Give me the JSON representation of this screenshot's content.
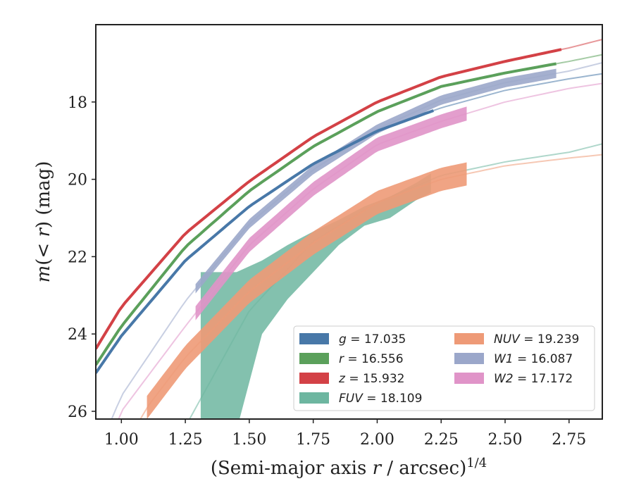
{
  "chart_data": {
    "type": "line",
    "xlabel": "(Semi-major axis r / arcsec)^{1/4}",
    "ylabel": "m(< r) (mag)",
    "xlim": [
      0.9,
      2.88
    ],
    "ylim": [
      26.2,
      16.0
    ],
    "x_ticks": [
      1.0,
      1.25,
      1.5,
      1.75,
      2.0,
      2.25,
      2.5,
      2.75
    ],
    "x_tick_labels": [
      "1.00",
      "1.25",
      "1.50",
      "1.75",
      "2.00",
      "2.25",
      "2.50",
      "2.75"
    ],
    "y_ticks": [
      18,
      20,
      22,
      24,
      26
    ],
    "y_tick_labels": [
      "18",
      "20",
      "22",
      "24",
      "26"
    ],
    "grid": false,
    "legend": {
      "placement": "lower-right",
      "columns": 2,
      "entries": [
        {
          "var": "g",
          "value": "17.035",
          "color": "#4878a8"
        },
        {
          "var": "r",
          "value": "16.556",
          "color": "#5ba05b"
        },
        {
          "var": "z",
          "value": "15.932",
          "color": "#d34146"
        },
        {
          "var": "FUV",
          "value": "18.109",
          "color": "#6db6a0"
        },
        {
          "var": "NUV",
          "value": "19.239",
          "color": "#ee9a77"
        },
        {
          "var": "W1",
          "value": "16.087",
          "color": "#9ba7ca"
        },
        {
          "var": "W2",
          "value": "17.172",
          "color": "#e094c8"
        }
      ]
    },
    "series": [
      {
        "name": "g",
        "kind": "line",
        "color": "#4878a8",
        "model": [
          [
            0.88,
            25.2
          ],
          [
            1.0,
            24.05
          ],
          [
            1.25,
            22.1
          ],
          [
            1.5,
            20.7
          ],
          [
            1.75,
            19.6
          ],
          [
            2.0,
            18.75
          ],
          [
            2.25,
            18.15
          ],
          [
            2.5,
            17.7
          ],
          [
            2.75,
            17.4
          ],
          [
            2.9,
            17.25
          ]
        ],
        "data_range": [
          0.9,
          2.22
        ]
      },
      {
        "name": "r",
        "kind": "line",
        "color": "#5ba05b",
        "model": [
          [
            0.88,
            25.0
          ],
          [
            1.0,
            23.8
          ],
          [
            1.25,
            21.75
          ],
          [
            1.5,
            20.3
          ],
          [
            1.75,
            19.15
          ],
          [
            2.0,
            18.25
          ],
          [
            2.25,
            17.6
          ],
          [
            2.5,
            17.25
          ],
          [
            2.75,
            16.95
          ],
          [
            2.9,
            16.75
          ]
        ],
        "data_range": [
          0.9,
          2.7
        ]
      },
      {
        "name": "z",
        "kind": "line",
        "color": "#d34146",
        "model": [
          [
            0.88,
            24.6
          ],
          [
            1.0,
            23.3
          ],
          [
            1.25,
            21.4
          ],
          [
            1.5,
            20.05
          ],
          [
            1.75,
            18.9
          ],
          [
            2.0,
            18.0
          ],
          [
            2.25,
            17.35
          ],
          [
            2.5,
            16.95
          ],
          [
            2.75,
            16.6
          ],
          [
            2.9,
            16.35
          ]
        ],
        "data_range": [
          0.9,
          2.72
        ]
      },
      {
        "name": "W1",
        "kind": "band",
        "color": "#9ba7ca",
        "model": [
          [
            0.88,
            27.5
          ],
          [
            1.0,
            25.6
          ],
          [
            1.25,
            23.15
          ],
          [
            1.5,
            21.15
          ],
          [
            1.75,
            19.75
          ],
          [
            2.0,
            18.7
          ],
          [
            2.25,
            17.95
          ],
          [
            2.5,
            17.5
          ],
          [
            2.75,
            17.2
          ],
          [
            2.9,
            16.95
          ]
        ],
        "data_range": [
          1.29,
          2.7
        ],
        "halfwidth": 0.12
      },
      {
        "name": "W2",
        "kind": "band",
        "color": "#e094c8",
        "model": [
          [
            0.88,
            28.0
          ],
          [
            1.0,
            26.0
          ],
          [
            1.25,
            23.8
          ],
          [
            1.5,
            21.7
          ],
          [
            1.75,
            20.25
          ],
          [
            2.0,
            19.1
          ],
          [
            2.25,
            18.5
          ],
          [
            2.5,
            18.0
          ],
          [
            2.75,
            17.65
          ],
          [
            2.9,
            17.5
          ]
        ],
        "data_range": [
          1.29,
          2.35
        ],
        "halfwidth": 0.18
      },
      {
        "name": "NUV",
        "kind": "band",
        "color": "#ee9a77",
        "model": [
          [
            0.88,
            28.5
          ],
          [
            1.1,
            25.9
          ],
          [
            1.25,
            24.6
          ],
          [
            1.5,
            22.9
          ],
          [
            1.75,
            21.65
          ],
          [
            2.0,
            20.6
          ],
          [
            2.25,
            20.0
          ],
          [
            2.5,
            19.65
          ],
          [
            2.75,
            19.45
          ],
          [
            2.9,
            19.35
          ]
        ],
        "data_range": [
          1.1,
          2.35
        ],
        "halfwidth": 0.3
      },
      {
        "name": "FUV",
        "kind": "band",
        "color": "#6db6a0",
        "model": [
          [
            1.2,
            27.0
          ],
          [
            1.35,
            25.2
          ],
          [
            1.5,
            23.4
          ],
          [
            1.75,
            21.6
          ],
          [
            2.0,
            20.6
          ],
          [
            2.25,
            19.9
          ],
          [
            2.5,
            19.55
          ],
          [
            2.75,
            19.3
          ],
          [
            2.9,
            19.05
          ]
        ],
        "band": [
          [
            1.31,
            22.4,
            27.0
          ],
          [
            1.45,
            22.4,
            26.5
          ],
          [
            1.55,
            22.1,
            24.0
          ],
          [
            1.65,
            21.7,
            23.1
          ],
          [
            1.75,
            21.35,
            22.4
          ],
          [
            1.85,
            21.05,
            21.7
          ],
          [
            1.95,
            20.7,
            21.2
          ],
          [
            2.05,
            20.45,
            21.0
          ],
          [
            2.15,
            20.1,
            20.55
          ],
          [
            2.21,
            19.85,
            20.35
          ]
        ]
      }
    ]
  }
}
